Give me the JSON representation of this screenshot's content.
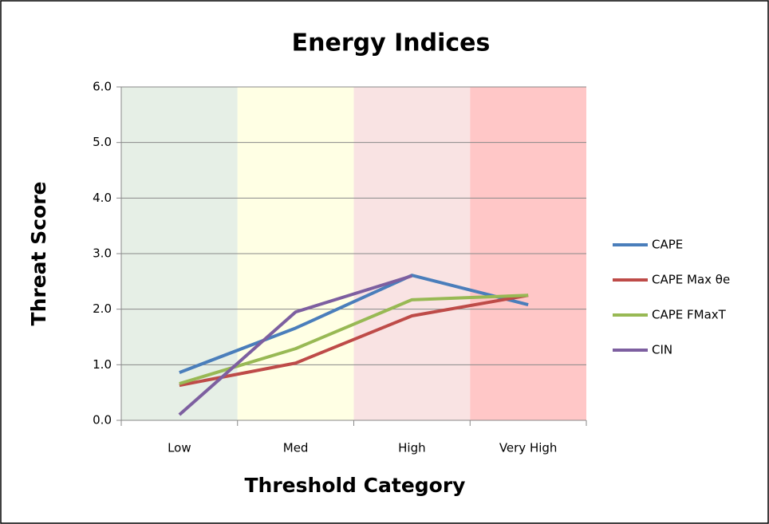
{
  "chart_data": {
    "type": "line",
    "title": "Energy Indices",
    "x_label": "Threshold Category",
    "y_label": "Threat Score",
    "categories": [
      "Low",
      "Med",
      "High",
      "Very High"
    ],
    "band_colors": [
      "#e6efe6",
      "#ffffe4",
      "#f9e3e3",
      "#ffc7c7"
    ],
    "series": [
      {
        "name": "CAPE",
        "color": "#4a7ebb",
        "values": [
          0.86,
          1.66,
          2.61,
          2.08
        ]
      },
      {
        "name": "CAPE Max θe",
        "color": "#be4b48",
        "values": [
          0.63,
          1.03,
          1.88,
          2.25
        ]
      },
      {
        "name": "CAPE FMaxT",
        "color": "#98b954",
        "values": [
          0.66,
          1.29,
          2.17,
          2.25
        ]
      },
      {
        "name": "CIN",
        "color": "#7d5fa0",
        "values": [
          0.1,
          1.95,
          2.6,
          null
        ]
      }
    ],
    "ylim": [
      0,
      6
    ],
    "yticks": [
      {
        "value": 0,
        "label": "0.0"
      },
      {
        "value": 1,
        "label": "1.0"
      },
      {
        "value": 2,
        "label": "2.0"
      },
      {
        "value": 3,
        "label": "3.0"
      },
      {
        "value": 4,
        "label": "4.0"
      },
      {
        "value": 5,
        "label": "5.0"
      },
      {
        "value": 6,
        "label": "6.0"
      }
    ],
    "grid": true,
    "legend": "right"
  }
}
